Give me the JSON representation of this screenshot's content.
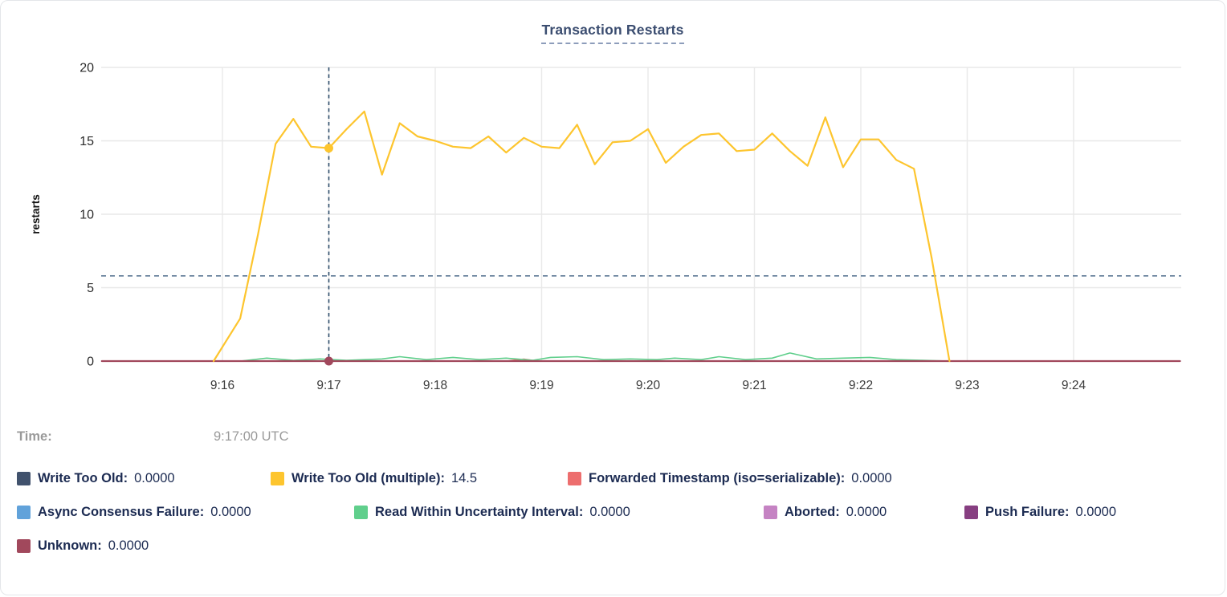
{
  "chart_data": {
    "type": "line",
    "title": "Transaction Restarts",
    "ylabel": "restarts",
    "ylim": [
      0,
      20
    ],
    "yticks": [
      0,
      5,
      10,
      15,
      20
    ],
    "xticks": [
      "9:16",
      "9:17",
      "9:18",
      "9:19",
      "9:20",
      "9:21",
      "9:22",
      "9:23",
      "9:24"
    ],
    "grid": true,
    "threshold_line_value": 5.8,
    "threshold_color": "#5b7794",
    "crosshair_color": "#2e4d6b",
    "crosshair_at_tick": "9:17",
    "series": [
      {
        "name": "Write Too Old",
        "color": "#41526d",
        "hover_value": "0.0000",
        "points": [
          [
            -68,
            0
          ],
          [
            540,
            0
          ]
        ]
      },
      {
        "name": "Async Consensus Failure",
        "color": "#61a2da",
        "hover_value": "0.0000",
        "points": [
          [
            -68,
            0
          ],
          [
            540,
            0
          ]
        ]
      },
      {
        "name": "Aborted",
        "color": "#c583c3",
        "hover_value": "0.0000",
        "points": [
          [
            -68,
            0
          ],
          [
            540,
            0
          ]
        ]
      },
      {
        "name": "Push Failure",
        "color": "#873f81",
        "hover_value": "0.0000",
        "points": [
          [
            -68,
            0
          ],
          [
            540,
            0
          ]
        ]
      },
      {
        "name": "Forwarded Timestamp (iso=serializable)",
        "color": "#ed6e6e",
        "hover_value": "0.0000",
        "points": [
          [
            -68,
            0
          ],
          [
            160,
            0
          ],
          [
            170,
            0.13
          ],
          [
            178,
            0
          ],
          [
            540,
            0
          ]
        ]
      },
      {
        "name": "Read Within Uncertainty Interval",
        "color": "#60cf8c",
        "hover_value": "0.0000",
        "points": [
          [
            -68,
            0
          ],
          [
            10,
            0
          ],
          [
            25,
            0.2
          ],
          [
            40,
            0.05
          ],
          [
            55,
            0.15
          ],
          [
            70,
            0.05
          ],
          [
            90,
            0.15
          ],
          [
            100,
            0.3
          ],
          [
            115,
            0.1
          ],
          [
            130,
            0.25
          ],
          [
            145,
            0.1
          ],
          [
            160,
            0.2
          ],
          [
            175,
            0.05
          ],
          [
            185,
            0.25
          ],
          [
            200,
            0.3
          ],
          [
            215,
            0.1
          ],
          [
            230,
            0.15
          ],
          [
            245,
            0.1
          ],
          [
            255,
            0.2
          ],
          [
            270,
            0.1
          ],
          [
            280,
            0.3
          ],
          [
            295,
            0.1
          ],
          [
            310,
            0.2
          ],
          [
            320,
            0.55
          ],
          [
            335,
            0.15
          ],
          [
            350,
            0.2
          ],
          [
            365,
            0.25
          ],
          [
            380,
            0.1
          ],
          [
            395,
            0.05
          ],
          [
            410,
            0
          ],
          [
            540,
            0
          ]
        ]
      },
      {
        "name": "Unknown",
        "color": "#a1485c",
        "hover_value": "0.0000",
        "points": [
          [
            -68,
            0
          ],
          [
            540,
            0
          ]
        ]
      },
      {
        "name": "Write Too Old (multiple)",
        "color": "#fdc52e",
        "hover_value": "14.5",
        "points": [
          [
            -5,
            0
          ],
          [
            10,
            2.9
          ],
          [
            20,
            8.6
          ],
          [
            30,
            14.8
          ],
          [
            40,
            16.5
          ],
          [
            50,
            14.6
          ],
          [
            60,
            14.5
          ],
          [
            70,
            15.8
          ],
          [
            80,
            17.0
          ],
          [
            90,
            12.7
          ],
          [
            100,
            16.2
          ],
          [
            110,
            15.3
          ],
          [
            120,
            15.0
          ],
          [
            130,
            14.6
          ],
          [
            140,
            14.5
          ],
          [
            150,
            15.3
          ],
          [
            160,
            14.2
          ],
          [
            170,
            15.2
          ],
          [
            180,
            14.6
          ],
          [
            190,
            14.5
          ],
          [
            200,
            16.1
          ],
          [
            210,
            13.4
          ],
          [
            220,
            14.9
          ],
          [
            230,
            15.0
          ],
          [
            240,
            15.8
          ],
          [
            250,
            13.5
          ],
          [
            260,
            14.6
          ],
          [
            270,
            15.4
          ],
          [
            280,
            15.5
          ],
          [
            290,
            14.3
          ],
          [
            300,
            14.4
          ],
          [
            310,
            15.5
          ],
          [
            320,
            14.3
          ],
          [
            330,
            13.3
          ],
          [
            340,
            16.6
          ],
          [
            350,
            13.2
          ],
          [
            360,
            15.1
          ],
          [
            370,
            15.1
          ],
          [
            380,
            13.7
          ],
          [
            390,
            13.1
          ],
          [
            400,
            7.0
          ],
          [
            410,
            0
          ]
        ]
      }
    ],
    "markers": [
      {
        "series": "Write Too Old (multiple)",
        "t": 60,
        "value": 14.5
      },
      {
        "series": "Unknown",
        "t": 60,
        "value": 0
      }
    ]
  },
  "hover_readout": {
    "time_label": "Time:",
    "time_value": "9:17:00 UTC"
  },
  "legend_rows": [
    [
      "Write Too Old",
      "Write Too Old (multiple)",
      "Forwarded Timestamp (iso=serializable)"
    ],
    [
      "Async Consensus Failure",
      "Read Within Uncertainty Interval",
      "Aborted",
      "Push Failure"
    ],
    [
      "Unknown"
    ]
  ]
}
